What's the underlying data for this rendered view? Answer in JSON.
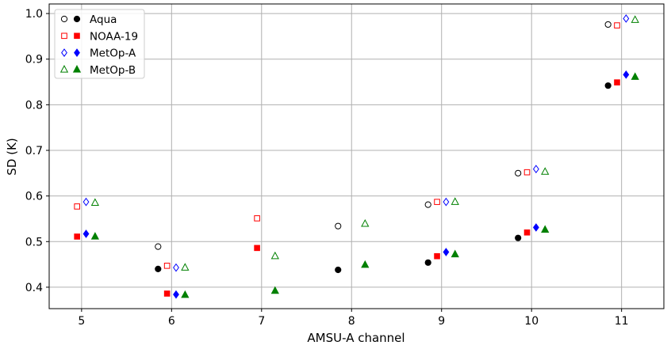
{
  "chart_data": {
    "type": "scatter",
    "title": "",
    "xlabel": "AMSU-A channel",
    "ylabel": "SD (K)",
    "xlim": [
      4.64,
      11.47
    ],
    "ylim": [
      0.353,
      1.021
    ],
    "xticks": [
      5,
      6,
      7,
      8,
      9,
      10,
      11
    ],
    "yticks": [
      0.4,
      0.5,
      0.6,
      0.7,
      0.8,
      0.9,
      1.0
    ],
    "ytick_labels": [
      "0.4",
      "0.5",
      "0.6",
      "0.7",
      "0.8",
      "0.9",
      "1.0"
    ],
    "grid": true,
    "legend_position": "top-left",
    "series": [
      {
        "name": "Aqua",
        "color": "#000000",
        "marker": "circle",
        "x_offset": -0.15,
        "channels": [
          6,
          8,
          9,
          10,
          11
        ],
        "open_values": [
          0.489,
          0.534,
          0.581,
          0.65,
          0.976
        ],
        "filled_values": [
          0.44,
          0.438,
          0.454,
          0.508,
          0.842
        ]
      },
      {
        "name": "NOAA-19",
        "color": "#ff0000",
        "marker": "square",
        "x_offset": -0.05,
        "channels": [
          5,
          6,
          7,
          9,
          10,
          11
        ],
        "open_values": [
          0.577,
          0.447,
          0.551,
          0.587,
          0.652,
          0.974
        ],
        "filled_values": [
          0.511,
          0.386,
          0.486,
          0.468,
          0.52,
          0.849
        ]
      },
      {
        "name": "MetOp-A",
        "color": "#0000ff",
        "marker": "diamond",
        "x_offset": 0.05,
        "channels": [
          5,
          6,
          9,
          10,
          11
        ],
        "open_values": [
          0.587,
          0.443,
          0.587,
          0.659,
          0.989
        ],
        "filled_values": [
          0.517,
          0.384,
          0.477,
          0.531,
          0.866
        ]
      },
      {
        "name": "MetOp-B",
        "color": "#008000",
        "marker": "triangle",
        "x_offset": 0.15,
        "channels": [
          5,
          6,
          7,
          8,
          9,
          10,
          11
        ],
        "open_values": [
          0.585,
          0.443,
          0.468,
          0.539,
          0.587,
          0.653,
          0.986
        ],
        "filled_values": [
          0.511,
          0.383,
          0.392,
          0.449,
          0.472,
          0.526,
          0.861
        ]
      }
    ]
  }
}
